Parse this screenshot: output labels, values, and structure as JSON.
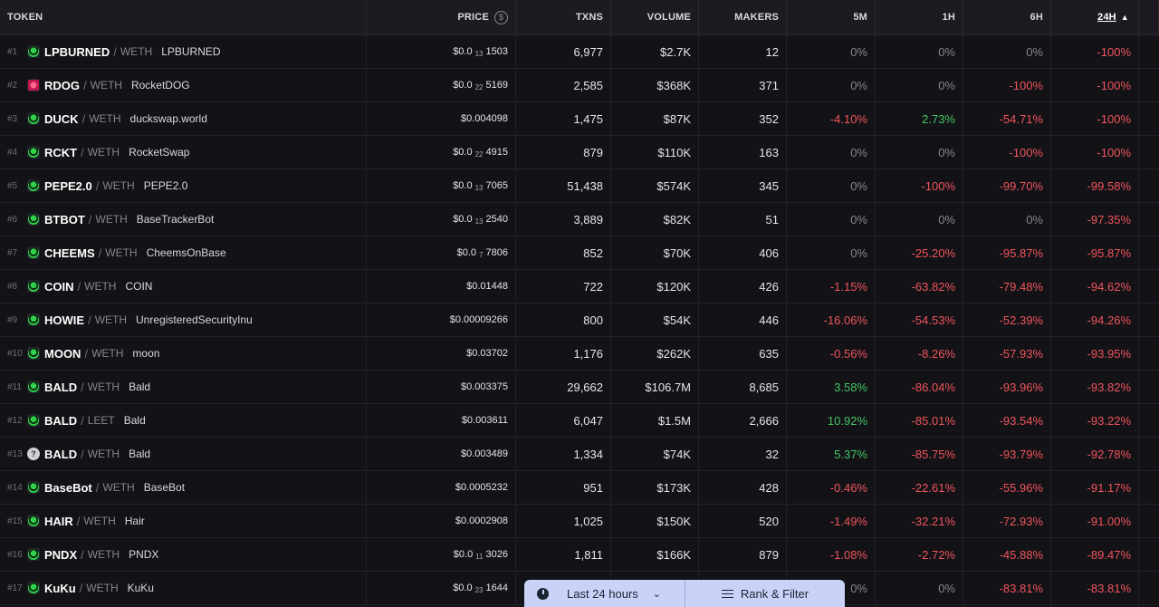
{
  "header": {
    "token": "TOKEN",
    "price": "PRICE",
    "price_icon": "dollar-icon",
    "txns": "TXNS",
    "volume": "VOLUME",
    "makers": "MAKERS",
    "m5": "5M",
    "h1": "1H",
    "h6": "6H",
    "h24": "24H",
    "sort_indicator": "▲"
  },
  "rows": [
    {
      "rank": "#1",
      "sym": "LPBURNED",
      "quote": "WETH",
      "name": "LPBURNED",
      "price_pre": "$0.0",
      "price_sub": "13",
      "price_post": "1503",
      "txns": "6,977",
      "volume": "$2.7K",
      "makers": "12",
      "m5": "0%",
      "h1": "0%",
      "h6": "0%",
      "h24": "-100%"
    },
    {
      "rank": "#2",
      "sym": "RDOG",
      "quote": "WETH",
      "name": "RocketDOG",
      "price_pre": "$0.0",
      "price_sub": "22",
      "price_post": "5169",
      "txns": "2,585",
      "volume": "$368K",
      "makers": "371",
      "m5": "0%",
      "h1": "0%",
      "h6": "-100%",
      "h24": "-100%",
      "icon": "red"
    },
    {
      "rank": "#3",
      "sym": "DUCK",
      "quote": "WETH",
      "name": "duckswap.world",
      "price_pre": "$0.004098",
      "price_sub": "",
      "price_post": "",
      "txns": "1,475",
      "volume": "$87K",
      "makers": "352",
      "m5": "-4.10%",
      "h1": "2.73%",
      "h6": "-54.71%",
      "h24": "-100%"
    },
    {
      "rank": "#4",
      "sym": "RCKT",
      "quote": "WETH",
      "name": "RocketSwap",
      "price_pre": "$0.0",
      "price_sub": "22",
      "price_post": "4915",
      "txns": "879",
      "volume": "$110K",
      "makers": "163",
      "m5": "0%",
      "h1": "0%",
      "h6": "-100%",
      "h24": "-100%"
    },
    {
      "rank": "#5",
      "sym": "PEPE2.0",
      "quote": "WETH",
      "name": "PEPE2.0",
      "price_pre": "$0.0",
      "price_sub": "13",
      "price_post": "7065",
      "txns": "51,438",
      "volume": "$574K",
      "makers": "345",
      "m5": "0%",
      "h1": "-100%",
      "h6": "-99.70%",
      "h24": "-99.58%"
    },
    {
      "rank": "#6",
      "sym": "BTBOT",
      "quote": "WETH",
      "name": "BaseTrackerBot",
      "price_pre": "$0.0",
      "price_sub": "13",
      "price_post": "2540",
      "txns": "3,889",
      "volume": "$82K",
      "makers": "51",
      "m5": "0%",
      "h1": "0%",
      "h6": "0%",
      "h24": "-97.35%"
    },
    {
      "rank": "#7",
      "sym": "CHEEMS",
      "quote": "WETH",
      "name": "CheemsOnBase",
      "price_pre": "$0.0",
      "price_sub": "7",
      "price_post": "7806",
      "txns": "852",
      "volume": "$70K",
      "makers": "406",
      "m5": "0%",
      "h1": "-25.20%",
      "h6": "-95.87%",
      "h24": "-95.87%"
    },
    {
      "rank": "#8",
      "sym": "COIN",
      "quote": "WETH",
      "name": "COIN",
      "price_pre": "$0.01448",
      "price_sub": "",
      "price_post": "",
      "txns": "722",
      "volume": "$120K",
      "makers": "426",
      "m5": "-1.15%",
      "h1": "-63.82%",
      "h6": "-79.48%",
      "h24": "-94.62%"
    },
    {
      "rank": "#9",
      "sym": "HOWIE",
      "quote": "WETH",
      "name": "UnregisteredSecurityInu",
      "price_pre": "$0.00009266",
      "price_sub": "",
      "price_post": "",
      "txns": "800",
      "volume": "$54K",
      "makers": "446",
      "m5": "-16.06%",
      "h1": "-54.53%",
      "h6": "-52.39%",
      "h24": "-94.26%"
    },
    {
      "rank": "#10",
      "sym": "MOON",
      "quote": "WETH",
      "name": "moon",
      "price_pre": "$0.03702",
      "price_sub": "",
      "price_post": "",
      "txns": "1,176",
      "volume": "$262K",
      "makers": "635",
      "m5": "-0.56%",
      "h1": "-8.26%",
      "h6": "-57.93%",
      "h24": "-93.95%"
    },
    {
      "rank": "#11",
      "sym": "BALD",
      "quote": "WETH",
      "name": "Bald",
      "price_pre": "$0.003375",
      "price_sub": "",
      "price_post": "",
      "txns": "29,662",
      "volume": "$106.7M",
      "makers": "8,685",
      "m5": "3.58%",
      "h1": "-86.04%",
      "h6": "-93.96%",
      "h24": "-93.82%"
    },
    {
      "rank": "#12",
      "sym": "BALD",
      "quote": "LEET",
      "name": "Bald",
      "price_pre": "$0.003611",
      "price_sub": "",
      "price_post": "",
      "txns": "6,047",
      "volume": "$1.5M",
      "makers": "2,666",
      "m5": "10.92%",
      "h1": "-85.01%",
      "h6": "-93.54%",
      "h24": "-93.22%"
    },
    {
      "rank": "#13",
      "sym": "BALD",
      "quote": "WETH",
      "name": "Bald",
      "price_pre": "$0.003489",
      "price_sub": "",
      "price_post": "",
      "txns": "1,334",
      "volume": "$74K",
      "makers": "32",
      "m5": "5.37%",
      "h1": "-85.75%",
      "h6": "-93.79%",
      "h24": "-92.78%",
      "icon": "help"
    },
    {
      "rank": "#14",
      "sym": "BaseBot",
      "quote": "WETH",
      "name": "BaseBot",
      "price_pre": "$0.0005232",
      "price_sub": "",
      "price_post": "",
      "txns": "951",
      "volume": "$173K",
      "makers": "428",
      "m5": "-0.46%",
      "h1": "-22.61%",
      "h6": "-55.96%",
      "h24": "-91.17%"
    },
    {
      "rank": "#15",
      "sym": "HAIR",
      "quote": "WETH",
      "name": "Hair",
      "price_pre": "$0.0002908",
      "price_sub": "",
      "price_post": "",
      "txns": "1,025",
      "volume": "$150K",
      "makers": "520",
      "m5": "-1.49%",
      "h1": "-32.21%",
      "h6": "-72.93%",
      "h24": "-91.00%"
    },
    {
      "rank": "#16",
      "sym": "PNDX",
      "quote": "WETH",
      "name": "PNDX",
      "price_pre": "$0.0",
      "price_sub": "11",
      "price_post": "3026",
      "txns": "1,811",
      "volume": "$166K",
      "makers": "879",
      "m5": "-1.08%",
      "h1": "-2.72%",
      "h6": "-45.88%",
      "h24": "-89.47%"
    },
    {
      "rank": "#17",
      "sym": "KuKu",
      "quote": "WETH",
      "name": "KuKu",
      "price_pre": "$0.0",
      "price_sub": "23",
      "price_post": "1644",
      "txns": "",
      "volume": "",
      "makers": "",
      "m5": "0%",
      "h1": "0%",
      "h6": "-83.81%",
      "h24": "-83.81%"
    }
  ],
  "bottom_bar": {
    "time_label": "Last 24 hours",
    "filter_label": "Rank & Filter",
    "clock_icon": "clock-icon",
    "chevron_icon": "chevron-down-icon",
    "filter_icon": "sliders-icon"
  },
  "colors": {
    "negative": "#f0545c",
    "positive": "#44c463",
    "neutral": "#85858e",
    "background": "#131317",
    "bottom_bar": "#c9d3f7"
  }
}
